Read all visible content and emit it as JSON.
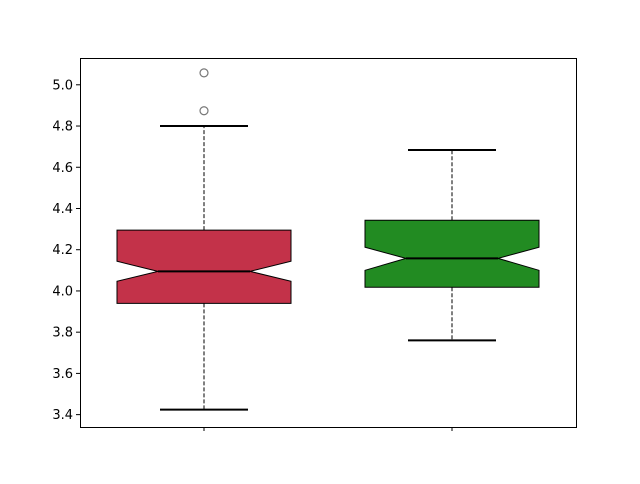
{
  "chart_data": {
    "type": "boxplot",
    "title": "",
    "xlabel": "",
    "ylabel": "",
    "ylim": [
      3.34,
      5.13
    ],
    "yticks": [
      "3.4",
      "3.6",
      "3.8",
      "4.0",
      "4.2",
      "4.4",
      "4.6",
      "4.8",
      "5.0"
    ],
    "grid": false,
    "notched": true,
    "boxes": [
      {
        "color": "#c33249",
        "q1": 3.94,
        "median": 4.095,
        "q3": 4.295,
        "notch_low": 4.047,
        "notch_high": 4.144,
        "whisker_low": 3.424,
        "whisker_high": 4.8,
        "outliers": [
          4.874,
          5.058
        ]
      },
      {
        "color": "#228b22",
        "q1": 4.018,
        "median": 4.158,
        "q3": 4.343,
        "notch_low": 4.1,
        "notch_high": 4.212,
        "whisker_low": 3.76,
        "whisker_high": 4.684,
        "outliers": []
      }
    ]
  }
}
